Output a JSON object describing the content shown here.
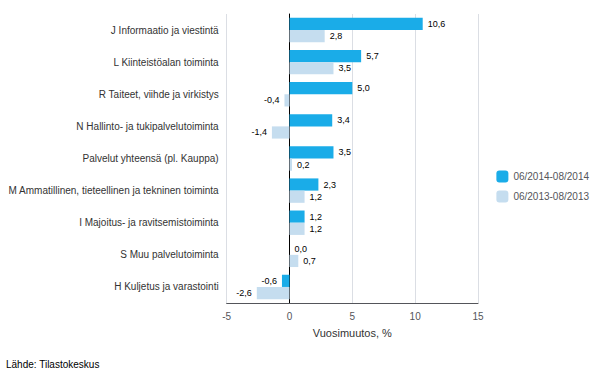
{
  "chart_data": {
    "type": "bar",
    "orientation": "horizontal",
    "categories": [
      "J Informaatio ja viestintä",
      "L Kiinteistöalan toiminta",
      "R Taiteet, viihde ja virkistys",
      "N Hallinto- ja tukipalvelutoiminta",
      "Palvelut yhteensä (pl. Kauppa)",
      "M Ammatillinen, tieteellinen ja tekninen toiminta",
      "I Majoitus- ja ravitsemistoiminta",
      "S Muu palvelutoiminta",
      "H Kuljetus ja varastointi"
    ],
    "series": [
      {
        "name": "06/2014-08/2014",
        "color": "#1AACE8",
        "values": [
          10.6,
          5.7,
          5.0,
          3.4,
          3.5,
          2.3,
          1.2,
          0.0,
          -0.6
        ],
        "value_labels": [
          "10,6",
          "5,7",
          "5,0",
          "3,4",
          "3,5",
          "2,3",
          "1,2",
          "0,0",
          "-0,6"
        ]
      },
      {
        "name": "06/2013-08/2013",
        "color": "#C5DDEF",
        "values": [
          2.8,
          3.5,
          -0.4,
          -1.4,
          0.2,
          1.2,
          1.2,
          0.7,
          -2.6
        ],
        "value_labels": [
          "2,8",
          "3,5",
          "-0,4",
          "-1,4",
          "0,2",
          "1,2",
          "1,2",
          "0,7",
          "-2,6"
        ]
      }
    ],
    "xlabel": "Vuosimuutos, %",
    "xlim": [
      -5,
      15
    ],
    "xticks": [
      -5,
      0,
      5,
      10,
      15
    ],
    "grid": true,
    "legend": "right",
    "data_labels": true,
    "footnote": "Lähde: Tilastokeskus"
  }
}
